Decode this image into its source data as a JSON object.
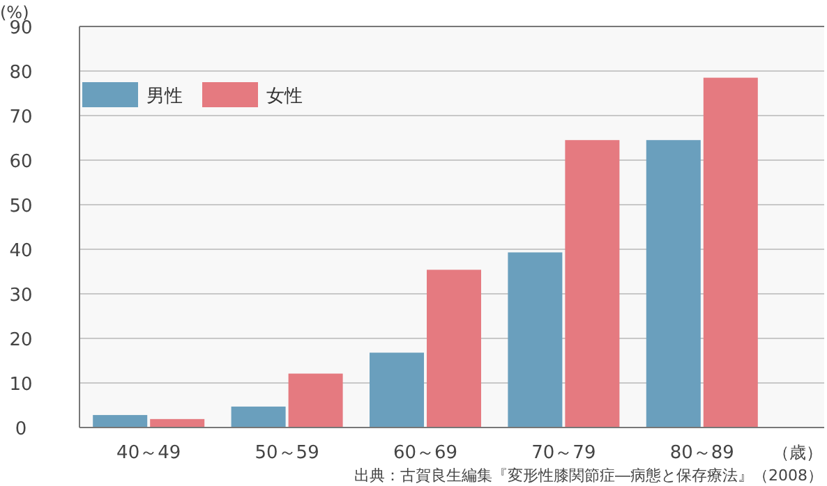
{
  "chart_data": {
    "type": "bar",
    "ylabel": "(%)",
    "xlabel": "（歳）",
    "categories": [
      "40～49",
      "50～59",
      "60～69",
      "70～79",
      "80～89"
    ],
    "series": [
      {
        "name": "男性",
        "color": "#6a9fbd",
        "values": [
          2.8,
          4.7,
          16.8,
          39.3,
          64.5
        ]
      },
      {
        "name": "女性",
        "color": "#e57a80",
        "values": [
          1.9,
          12.1,
          35.4,
          64.5,
          78.5
        ]
      }
    ],
    "ylim": [
      0,
      90
    ],
    "yticks": [
      0,
      10,
      20,
      30,
      40,
      50,
      60,
      70,
      80,
      90
    ],
    "grid": "y",
    "legend": "top left",
    "annotations": [
      "出典：古賀良生編集『変形性膝関節症―病態と保存療法』（2008）"
    ]
  }
}
